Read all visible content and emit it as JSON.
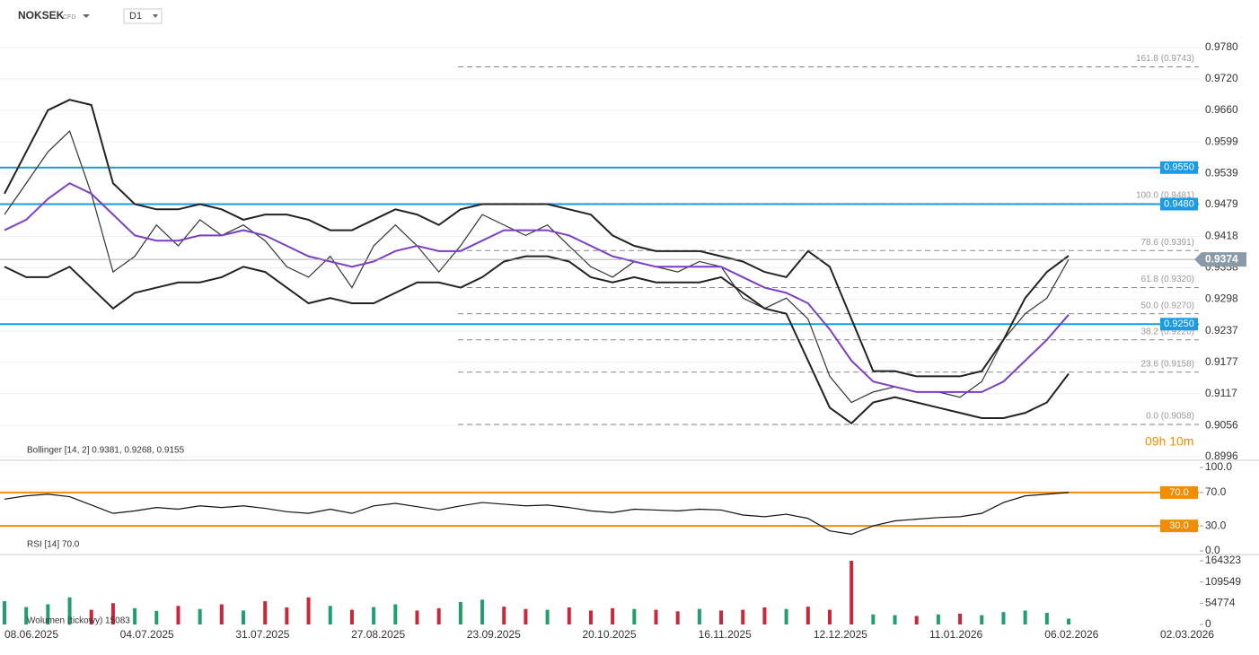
{
  "header": {
    "symbol": "NOKSEK",
    "kind": "CFD",
    "interval": "D1"
  },
  "countdown": "09h 10m",
  "chart_data": [
    {
      "type": "line",
      "pane": "price",
      "ylim": [
        0.8996,
        0.978
      ],
      "yticks": [
        {
          "value": 0.978,
          "label": "0.9780"
        },
        {
          "value": 0.972,
          "label": "0.9720"
        },
        {
          "value": 0.966,
          "label": "0.9660"
        },
        0.9599,
        0.9539,
        0.9479,
        0.9418,
        0.9358,
        0.9298,
        0.9237,
        0.9177,
        0.9117,
        0.9056,
        0.8996
      ],
      "x_labels": [
        "08.06.2025",
        "04.07.2025",
        "31.07.2025",
        "27.08.2025",
        "23.09.2025",
        "20.10.2025",
        "16.11.2025",
        "12.12.2025",
        "11.01.2026",
        "06.02.2026",
        "02.03.2026"
      ],
      "legend": "Bollinger  [14, 2]  0.9381, 0.9268, 0.9155",
      "series": [
        {
          "name": "price",
          "color": "#333333",
          "values": [
            0.946,
            0.952,
            0.958,
            0.962,
            0.95,
            0.935,
            0.938,
            0.944,
            0.94,
            0.945,
            0.942,
            0.944,
            0.941,
            0.936,
            0.934,
            0.938,
            0.932,
            0.94,
            0.944,
            0.94,
            0.935,
            0.94,
            0.946,
            0.944,
            0.942,
            0.944,
            0.94,
            0.936,
            0.934,
            0.937,
            0.936,
            0.935,
            0.937,
            0.936,
            0.93,
            0.928,
            0.93,
            0.926,
            0.915,
            0.91,
            0.912,
            0.913,
            0.912,
            0.912,
            0.911,
            0.914,
            0.922,
            0.927,
            0.93,
            0.9374
          ]
        },
        {
          "name": "upper",
          "color": "#222222",
          "values": [
            0.95,
            0.958,
            0.966,
            0.968,
            0.967,
            0.952,
            0.948,
            0.947,
            0.947,
            0.948,
            0.947,
            0.945,
            0.946,
            0.946,
            0.945,
            0.943,
            0.943,
            0.945,
            0.947,
            0.946,
            0.944,
            0.947,
            0.948,
            0.948,
            0.948,
            0.948,
            0.947,
            0.946,
            0.942,
            0.94,
            0.939,
            0.939,
            0.939,
            0.938,
            0.937,
            0.935,
            0.934,
            0.939,
            0.936,
            0.926,
            0.916,
            0.916,
            0.915,
            0.915,
            0.915,
            0.916,
            0.922,
            0.93,
            0.935,
            0.9381
          ]
        },
        {
          "name": "middle",
          "color": "#7b3fc4",
          "values": [
            0.943,
            0.945,
            0.949,
            0.952,
            0.95,
            0.946,
            0.942,
            0.941,
            0.941,
            0.942,
            0.942,
            0.943,
            0.942,
            0.94,
            0.938,
            0.937,
            0.936,
            0.937,
            0.939,
            0.94,
            0.939,
            0.939,
            0.941,
            0.943,
            0.943,
            0.943,
            0.942,
            0.94,
            0.938,
            0.937,
            0.936,
            0.936,
            0.936,
            0.936,
            0.934,
            0.932,
            0.931,
            0.929,
            0.924,
            0.918,
            0.914,
            0.913,
            0.912,
            0.912,
            0.912,
            0.912,
            0.914,
            0.918,
            0.922,
            0.9268
          ]
        },
        {
          "name": "lower",
          "color": "#222222",
          "values": [
            0.936,
            0.934,
            0.934,
            0.936,
            0.932,
            0.928,
            0.931,
            0.932,
            0.933,
            0.933,
            0.934,
            0.936,
            0.935,
            0.932,
            0.929,
            0.93,
            0.929,
            0.929,
            0.931,
            0.933,
            0.933,
            0.932,
            0.934,
            0.937,
            0.938,
            0.938,
            0.937,
            0.934,
            0.933,
            0.934,
            0.933,
            0.933,
            0.933,
            0.934,
            0.931,
            0.928,
            0.927,
            0.918,
            0.909,
            0.906,
            0.91,
            0.911,
            0.91,
            0.909,
            0.908,
            0.907,
            0.907,
            0.908,
            0.91,
            0.9155
          ]
        }
      ],
      "levels": [
        {
          "value": 0.955,
          "label": "0.9550"
        },
        {
          "value": 0.948,
          "label": "0.9480"
        },
        {
          "value": 0.925,
          "label": "0.9250"
        }
      ],
      "level_color": "#1a9be6",
      "last_price": {
        "value": 0.9374,
        "label": "0.9374"
      },
      "fib_levels": [
        {
          "value": 0.9743,
          "label": "161.8 (0.9743)"
        },
        {
          "value": 0.9481,
          "label": "100.0 (0.9481)"
        },
        {
          "value": 0.9391,
          "label": "78.6 (0.9391)"
        },
        {
          "value": 0.932,
          "label": "61.8 (0.9320)"
        },
        {
          "value": 0.927,
          "label": "50.0 (0.9270)"
        },
        {
          "value": 0.922,
          "label": "38.2 (0.9220)"
        },
        {
          "value": 0.9158,
          "label": "23.6 (0.9158)"
        },
        {
          "value": 0.9058,
          "label": "0.0 (0.9058)"
        }
      ]
    },
    {
      "type": "line",
      "pane": "rsi",
      "legend": "RSI  [14]  70.0",
      "ylim": [
        0,
        100
      ],
      "yticks": [
        {
          "value": 100,
          "label": "100.0"
        },
        {
          "value": 70,
          "label": "70.0"
        },
        {
          "value": 30,
          "label": "30.0"
        },
        {
          "value": 0,
          "label": "0.0"
        }
      ],
      "levels": [
        {
          "value": 70,
          "label": "70.0"
        },
        {
          "value": 30,
          "label": "30.0"
        }
      ],
      "level_color": "#f28c00",
      "series": [
        {
          "name": "RSI",
          "color": "#111111",
          "values": [
            62,
            66,
            68,
            65,
            55,
            45,
            48,
            52,
            50,
            54,
            52,
            54,
            51,
            47,
            45,
            50,
            45,
            54,
            57,
            53,
            49,
            54,
            58,
            56,
            54,
            55,
            52,
            48,
            46,
            50,
            49,
            48,
            50,
            49,
            43,
            41,
            44,
            39,
            24,
            20,
            30,
            36,
            38,
            40,
            41,
            45,
            58,
            66,
            68,
            70
          ]
        }
      ]
    },
    {
      "type": "bar",
      "pane": "volume",
      "legend": "Wolumen  (tickowy)  15083",
      "ylim": [
        0,
        164323
      ],
      "yticks": [
        164323,
        109549,
        54774,
        0
      ],
      "up_color": "#1f9e6e",
      "down_color": "#c8283c",
      "values": [
        60000,
        45000,
        52000,
        70000,
        38000,
        55000,
        42000,
        35000,
        48000,
        40000,
        52000,
        36000,
        60000,
        44000,
        70000,
        48000,
        38000,
        45000,
        52000,
        36000,
        42000,
        58000,
        64000,
        46000,
        40000,
        38000,
        44000,
        36000,
        42000,
        40000,
        38000,
        34000,
        40000,
        36000,
        38000,
        44000,
        40000,
        46000,
        38000,
        164323,
        26000,
        24000,
        22000,
        26000,
        28000,
        24000,
        32000,
        36000,
        30000,
        15083
      ]
    }
  ]
}
